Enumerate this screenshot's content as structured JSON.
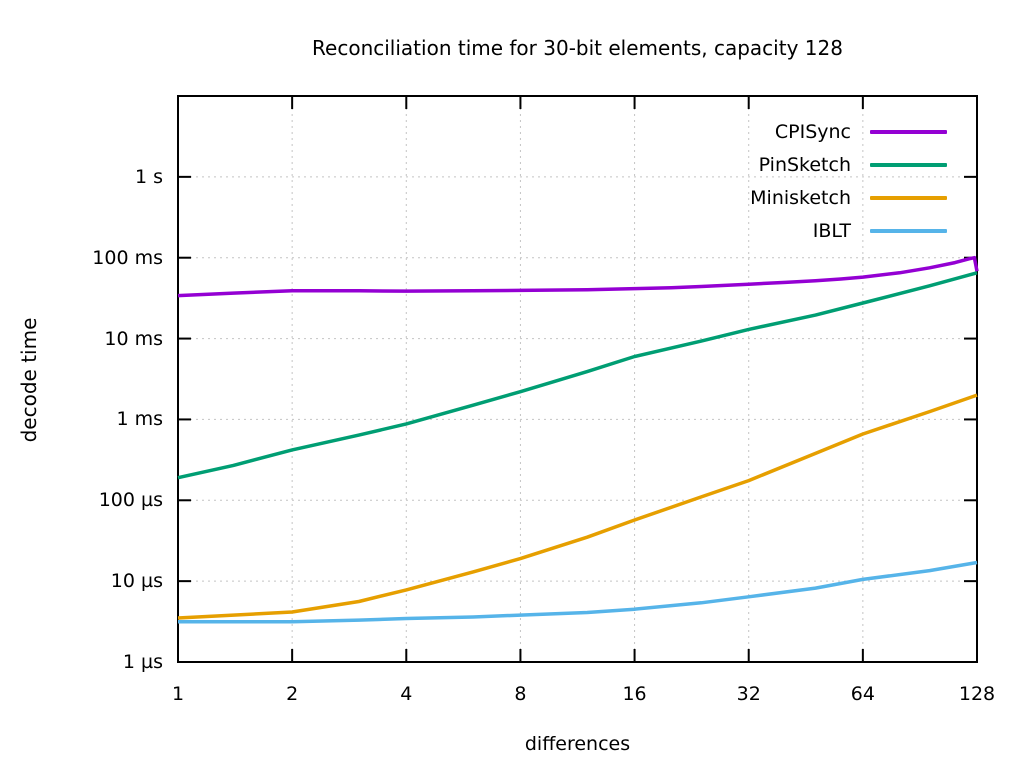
{
  "chart_data": {
    "type": "line",
    "title": "Reconciliation time for 30-bit elements, capacity 128",
    "xlabel": "differences",
    "ylabel": "decode time",
    "x_scale": "log2",
    "y_scale": "log10",
    "xlim": [
      1,
      128
    ],
    "ylim_us": [
      1,
      10000000
    ],
    "grid": true,
    "legend_position": "top-right-inside",
    "x_ticks": [
      1,
      2,
      4,
      8,
      16,
      32,
      64,
      128
    ],
    "x_tick_labels": [
      "1",
      "2",
      "4",
      "8",
      "16",
      "32",
      "64",
      "128"
    ],
    "y_ticks": [
      {
        "label": "1 s",
        "us": 1000000
      },
      {
        "label": "100 ms",
        "us": 100000
      },
      {
        "label": "10 ms",
        "us": 10000
      },
      {
        "label": "1 ms",
        "us": 1000
      },
      {
        "label": "100 µs",
        "us": 100
      },
      {
        "label": "10 µs",
        "us": 10
      },
      {
        "label": "1 µs",
        "us": 1
      }
    ],
    "series": [
      {
        "name": "CPISync",
        "color": "#9400d3",
        "points_x_us": [
          [
            1,
            34000
          ],
          [
            1.4,
            36500
          ],
          [
            2,
            39000
          ],
          [
            3,
            39000
          ],
          [
            4,
            38700
          ],
          [
            6,
            39000
          ],
          [
            8,
            39400
          ],
          [
            12,
            40200
          ],
          [
            16,
            41500
          ],
          [
            20,
            42500
          ],
          [
            24,
            44000
          ],
          [
            32,
            47000
          ],
          [
            40,
            49500
          ],
          [
            48,
            52000
          ],
          [
            56,
            54500
          ],
          [
            64,
            57500
          ],
          [
            80,
            65000
          ],
          [
            96,
            75000
          ],
          [
            112,
            87000
          ],
          [
            122,
            97000
          ],
          [
            126,
            100000
          ],
          [
            128,
            68000
          ]
        ]
      },
      {
        "name": "PinSketch",
        "color": "#009e73",
        "points_x_us": [
          [
            1,
            190
          ],
          [
            1.4,
            270
          ],
          [
            2,
            420
          ],
          [
            3,
            640
          ],
          [
            4,
            880
          ],
          [
            6,
            1500
          ],
          [
            8,
            2200
          ],
          [
            12,
            3900
          ],
          [
            16,
            6000
          ],
          [
            24,
            9300
          ],
          [
            32,
            13000
          ],
          [
            48,
            19500
          ],
          [
            64,
            27500
          ],
          [
            96,
            45000
          ],
          [
            128,
            65000
          ]
        ]
      },
      {
        "name": "Minisketch",
        "color": "#e69f00",
        "points_x_us": [
          [
            1,
            3.5
          ],
          [
            1.4,
            3.8
          ],
          [
            2,
            4.15
          ],
          [
            3,
            5.6
          ],
          [
            4,
            7.8
          ],
          [
            6,
            13
          ],
          [
            8,
            19
          ],
          [
            12,
            35
          ],
          [
            16,
            57
          ],
          [
            24,
            110
          ],
          [
            32,
            175
          ],
          [
            48,
            380
          ],
          [
            64,
            660
          ],
          [
            96,
            1250
          ],
          [
            128,
            2000
          ]
        ]
      },
      {
        "name": "IBLT",
        "color": "#56b4e9",
        "points_x_us": [
          [
            1,
            3.15
          ],
          [
            2,
            3.15
          ],
          [
            3,
            3.3
          ],
          [
            4,
            3.45
          ],
          [
            6,
            3.6
          ],
          [
            8,
            3.8
          ],
          [
            12,
            4.1
          ],
          [
            16,
            4.5
          ],
          [
            24,
            5.4
          ],
          [
            32,
            6.4
          ],
          [
            48,
            8.2
          ],
          [
            64,
            10.5
          ],
          [
            96,
            13.5
          ],
          [
            128,
            17
          ]
        ]
      }
    ],
    "style": {
      "grid_color": "#c4c4c4",
      "border_color": "#000000",
      "text_color": "#000000",
      "background": "#ffffff"
    }
  }
}
